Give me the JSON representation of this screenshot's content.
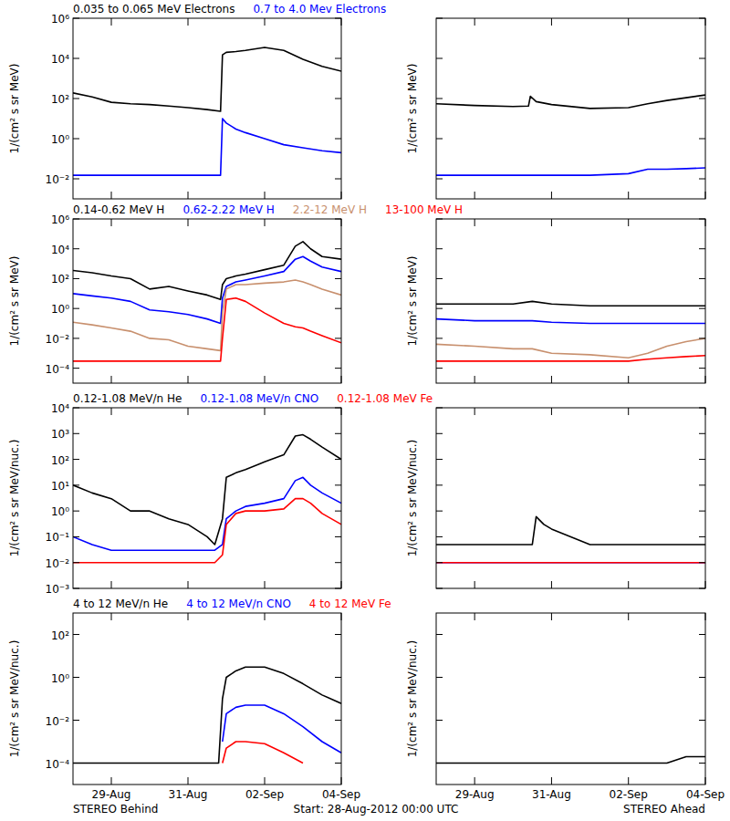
{
  "chart_data": [
    {
      "type": "line",
      "log": "y",
      "tick_labels": "y",
      "x": [
        0,
        0.5,
        1,
        1.5,
        2,
        2.5,
        3,
        3.5,
        3.85,
        3.9,
        4.0,
        4.25,
        4.5,
        5,
        5.5,
        6,
        6.5,
        7
      ],
      "xlim": [
        0,
        7
      ],
      "xticks": [
        {
          "value": 1,
          "label": "29-Aug"
        },
        {
          "value": 3,
          "label": "31-Aug"
        },
        {
          "value": 5,
          "label": "02-Sep"
        },
        {
          "value": 7,
          "label": "04-Sep"
        }
      ],
      "ylim": [
        0.001,
        1000000
      ],
      "yticks": [
        {
          "value": 1000000,
          "label": "10⁶"
        },
        {
          "value": 10000,
          "label": "10⁴"
        },
        {
          "value": 100,
          "label": "10²"
        },
        {
          "value": 1,
          "label": "10⁰"
        },
        {
          "value": 0.01,
          "label": "10⁻²"
        }
      ],
      "y_label": "1/(cm² s sr MeV)",
      "series": [
        {
          "name": "0.035 to 0.065 MeV Electrons",
          "color": "#000000",
          "values": [
            190,
            120,
            65,
            55,
            50,
            42,
            35,
            28,
            23,
            15000,
            20000,
            22000,
            25000,
            35000,
            25000,
            9000,
            4000,
            2300
          ]
        },
        {
          "name": "0.7 to 4.0 Mev Electrons",
          "color": "#0000ff",
          "values": [
            0.015,
            0.015,
            0.015,
            0.015,
            0.015,
            0.015,
            0.015,
            0.015,
            0.015,
            10,
            6,
            3,
            2,
            1,
            0.5,
            0.35,
            0.25,
            0.2
          ]
        }
      ]
    },
    {
      "type": "line",
      "log": "y",
      "tick_labels": false,
      "x": [
        0,
        1,
        2,
        2.4,
        2.45,
        2.6,
        3,
        4,
        5,
        5.5,
        6,
        6.5,
        7
      ],
      "xlim": [
        0,
        7
      ],
      "xticks": [
        {
          "value": 1,
          "label": "29-Aug"
        },
        {
          "value": 3,
          "label": "31-Aug"
        },
        {
          "value": 5,
          "label": "02-Sep"
        },
        {
          "value": 7,
          "label": "04-Sep"
        }
      ],
      "ylim": [
        0.001,
        1000000
      ],
      "yticks": [
        {
          "value": 1000000,
          "label": "10⁶"
        },
        {
          "value": 10000,
          "label": "10⁴"
        },
        {
          "value": 100,
          "label": "10²"
        },
        {
          "value": 1,
          "label": "10⁰"
        },
        {
          "value": 0.01,
          "label": "10⁻²"
        }
      ],
      "y_label": "1/(cm² s sr MeV)",
      "series": [
        {
          "color": "#000000",
          "values": [
            55,
            45,
            40,
            42,
            130,
            70,
            50,
            32,
            35,
            55,
            80,
            110,
            150
          ]
        },
        {
          "color": "#0000ff",
          "values": [
            0.015,
            0.015,
            0.015,
            0.015,
            0.015,
            0.015,
            0.015,
            0.015,
            0.018,
            0.03,
            0.03,
            0.032,
            0.035
          ]
        }
      ]
    },
    {
      "type": "line",
      "log": "y",
      "tick_labels": "y",
      "x": [
        0,
        0.5,
        1,
        1.5,
        2,
        2.5,
        3,
        3.5,
        3.85,
        3.9,
        4.0,
        4.25,
        4.5,
        5,
        5.5,
        5.8,
        6.0,
        6.2,
        6.5,
        7
      ],
      "xlim": [
        0,
        7
      ],
      "xticks": [
        {
          "value": 1,
          "label": "29-Aug"
        },
        {
          "value": 3,
          "label": "31-Aug"
        },
        {
          "value": 5,
          "label": "02-Sep"
        },
        {
          "value": 7,
          "label": "04-Sep"
        }
      ],
      "ylim": [
        1e-05,
        1000000
      ],
      "yticks": [
        {
          "value": 1000000,
          "label": "10⁶"
        },
        {
          "value": 10000,
          "label": "10⁴"
        },
        {
          "value": 100,
          "label": "10²"
        },
        {
          "value": 1,
          "label": "10⁰"
        },
        {
          "value": 0.01,
          "label": "10⁻²"
        },
        {
          "value": 0.0001,
          "label": "10⁻⁴"
        }
      ],
      "y_label": "1/(cm² s sr MeV)",
      "series": [
        {
          "name": "0.14-0.62 MeV H",
          "color": "#000000",
          "values": [
            350,
            250,
            150,
            100,
            20,
            30,
            15,
            8,
            4,
            40,
            100,
            150,
            200,
            400,
            800,
            15000,
            30000,
            10000,
            3000,
            2000
          ]
        },
        {
          "name": "0.62-2.22 MeV H",
          "color": "#0000ff",
          "values": [
            10,
            7,
            5,
            3,
            0.8,
            0.6,
            0.4,
            0.2,
            0.1,
            5,
            30,
            60,
            80,
            150,
            300,
            2000,
            3000,
            1500,
            600,
            300
          ]
        },
        {
          "name": "2.2-12 MeV H",
          "color": "#c8906e",
          "values": [
            0.12,
            0.08,
            0.05,
            0.03,
            0.01,
            0.008,
            0.003,
            0.002,
            0.0015,
            0.5,
            20,
            40,
            40,
            50,
            60,
            80,
            60,
            40,
            20,
            8
          ]
        },
        {
          "name": "13-100 MeV H",
          "color": "#ff0000",
          "values": [
            0.0003,
            0.0003,
            0.0003,
            0.0003,
            0.0003,
            0.0003,
            0.0003,
            0.0003,
            0.0003,
            0.01,
            4,
            5,
            3,
            0.5,
            0.1,
            0.06,
            0.05,
            0.03,
            0.015,
            0.005
          ]
        }
      ]
    },
    {
      "type": "line",
      "log": "y",
      "tick_labels": false,
      "x": [
        0,
        1,
        2,
        2.5,
        3,
        4,
        5,
        5.5,
        6,
        6.5,
        7
      ],
      "xlim": [
        0,
        7
      ],
      "xticks": [
        {
          "value": 1,
          "label": "29-Aug"
        },
        {
          "value": 3,
          "label": "31-Aug"
        },
        {
          "value": 5,
          "label": "02-Sep"
        },
        {
          "value": 7,
          "label": "04-Sep"
        }
      ],
      "ylim": [
        1e-05,
        1000000
      ],
      "yticks": [
        {
          "value": 1000000,
          "label": "10⁶"
        },
        {
          "value": 10000,
          "label": "10⁴"
        },
        {
          "value": 100,
          "label": "10²"
        },
        {
          "value": 1,
          "label": "10⁰"
        },
        {
          "value": 0.01,
          "label": "10⁻²"
        },
        {
          "value": 0.0001,
          "label": "10⁻⁴"
        }
      ],
      "y_label": "1/(cm² s sr MeV)",
      "series": [
        {
          "color": "#000000",
          "values": [
            2,
            2,
            2,
            3,
            2,
            1.5,
            1.5,
            1.5,
            1.5,
            1.5,
            1.5
          ]
        },
        {
          "color": "#0000ff",
          "values": [
            0.2,
            0.15,
            0.15,
            0.15,
            0.12,
            0.1,
            0.1,
            0.1,
            0.1,
            0.1,
            0.1
          ]
        },
        {
          "color": "#c8906e",
          "values": [
            0.004,
            0.003,
            0.002,
            0.002,
            0.001,
            0.0008,
            0.0005,
            0.001,
            0.003,
            0.006,
            0.01
          ]
        },
        {
          "color": "#ff0000",
          "values": [
            0.0003,
            0.0003,
            0.0003,
            0.0003,
            0.0003,
            0.0003,
            0.0003,
            0.0004,
            0.0005,
            0.0006,
            0.0007
          ]
        }
      ]
    },
    {
      "type": "line",
      "log": "y",
      "tick_labels": "y",
      "x": [
        0,
        0.5,
        1,
        1.5,
        2,
        2.5,
        3,
        3.5,
        3.7,
        3.9,
        4.0,
        4.25,
        4.5,
        5,
        5.5,
        5.8,
        6.0,
        6.2,
        6.5,
        7
      ],
      "xlim": [
        0,
        7
      ],
      "xticks": [
        {
          "value": 1,
          "label": "29-Aug"
        },
        {
          "value": 3,
          "label": "31-Aug"
        },
        {
          "value": 5,
          "label": "02-Sep"
        },
        {
          "value": 7,
          "label": "04-Sep"
        }
      ],
      "ylim": [
        0.001,
        10000
      ],
      "yticks": [
        {
          "value": 10000,
          "label": "10⁴"
        },
        {
          "value": 1000,
          "label": "10³"
        },
        {
          "value": 100,
          "label": "10²"
        },
        {
          "value": 10,
          "label": "10¹"
        },
        {
          "value": 1,
          "label": "10⁰"
        },
        {
          "value": 0.1,
          "label": "10⁻¹"
        },
        {
          "value": 0.01,
          "label": "10⁻²"
        },
        {
          "value": 0.001,
          "label": "10⁻³"
        }
      ],
      "y_label": "1/(cm² s sr MeV/nuc.)",
      "series": [
        {
          "name": "0.12-1.08 MeV/n He",
          "color": "#000000",
          "values": [
            10,
            5,
            3,
            1,
            1,
            0.5,
            0.3,
            0.1,
            0.05,
            0.5,
            20,
            30,
            40,
            80,
            150,
            800,
            900,
            600,
            300,
            100
          ]
        },
        {
          "name": "0.12-1.08 MeV/n CNO",
          "color": "#0000ff",
          "values": [
            0.1,
            0.05,
            0.03,
            0.03,
            0.03,
            0.03,
            0.03,
            0.03,
            0.03,
            0.05,
            0.5,
            1,
            1.5,
            2,
            3,
            15,
            20,
            10,
            5,
            2
          ]
        },
        {
          "name": "0.12-1.08 MeV Fe",
          "color": "#ff0000",
          "values": [
            0.01,
            0.01,
            0.01,
            0.01,
            0.01,
            0.01,
            0.01,
            0.01,
            0.01,
            0.02,
            0.3,
            0.8,
            1,
            1,
            1.2,
            3,
            3,
            2,
            0.8,
            0.3
          ]
        }
      ]
    },
    {
      "type": "line",
      "log": "y",
      "tick_labels": false,
      "x": [
        0,
        1,
        2,
        2.5,
        2.6,
        2.8,
        3,
        3.5,
        4,
        5,
        6,
        7
      ],
      "xlim": [
        0,
        7
      ],
      "xticks": [
        {
          "value": 1,
          "label": "29-Aug"
        },
        {
          "value": 3,
          "label": "31-Aug"
        },
        {
          "value": 5,
          "label": "02-Sep"
        },
        {
          "value": 7,
          "label": "04-Sep"
        }
      ],
      "ylim": [
        0.001,
        10000
      ],
      "yticks": [
        {
          "value": 10000,
          "label": "10⁴"
        },
        {
          "value": 1000,
          "label": "10³"
        },
        {
          "value": 100,
          "label": "10²"
        },
        {
          "value": 10,
          "label": "10¹"
        },
        {
          "value": 1,
          "label": "10⁰"
        },
        {
          "value": 0.1,
          "label": "10⁻¹"
        },
        {
          "value": 0.01,
          "label": "10⁻²"
        },
        {
          "value": 0.001,
          "label": "10⁻³"
        }
      ],
      "y_label": "1/(cm² s sr MeV/nuc.)",
      "series": [
        {
          "color": "#000000",
          "values": [
            0.05,
            0.05,
            0.05,
            0.05,
            0.6,
            0.3,
            0.2,
            0.1,
            0.05,
            0.05,
            0.05,
            0.05
          ]
        },
        {
          "color": "#0000ff",
          "values": [
            0.01,
            0.01,
            0.01,
            0.01,
            0.01,
            0.01,
            0.01,
            0.01,
            0.01,
            0.01,
            0.01,
            0.01
          ]
        },
        {
          "color": "#ff0000",
          "values": [
            0.01,
            0.01,
            0.01,
            0.01,
            0.01,
            0.01,
            0.01,
            0.01,
            0.01,
            0.01,
            0.01,
            0.01
          ]
        }
      ]
    },
    {
      "type": "line",
      "log": "y",
      "tick_labels": true,
      "x": [
        0,
        1,
        2,
        3,
        3.8,
        3.9,
        4.0,
        4.25,
        4.5,
        5,
        5.5,
        6,
        6.5,
        7
      ],
      "xlim": [
        0,
        7
      ],
      "xticks": [
        {
          "value": 1,
          "label": "29-Aug"
        },
        {
          "value": 3,
          "label": "31-Aug"
        },
        {
          "value": 5,
          "label": "02-Sep"
        },
        {
          "value": 7,
          "label": "04-Sep"
        }
      ],
      "ylim": [
        1e-05,
        1000
      ],
      "yticks": [
        {
          "value": 100,
          "label": "10²"
        },
        {
          "value": 1,
          "label": "10⁰"
        },
        {
          "value": 0.01,
          "label": "10⁻²"
        },
        {
          "value": 0.0001,
          "label": "10⁻⁴"
        }
      ],
      "y_label": "1/(cm² s sr MeV/nuc.)",
      "x_label": "STEREO Behind",
      "annotations": [
        "Start: 28-Aug-2012 00:00 UTC"
      ],
      "series": [
        {
          "name": "4 to 12 MeV/n He",
          "color": "#000000",
          "values": [
            0.0001,
            0.0001,
            0.0001,
            0.0001,
            0.0001,
            0.1,
            1,
            2,
            3,
            3,
            1.5,
            0.5,
            0.15,
            0.06
          ]
        },
        {
          "name": "4 to 12 MeV/n CNO",
          "color": "#0000ff",
          "values": [
            null,
            null,
            null,
            null,
            null,
            0.001,
            0.02,
            0.04,
            0.05,
            0.05,
            0.02,
            0.005,
            0.001,
            0.0003
          ]
        },
        {
          "name": "4 to 12 MeV Fe",
          "color": "#ff0000",
          "values": [
            null,
            null,
            null,
            null,
            null,
            0.0001,
            0.0005,
            0.001,
            0.001,
            0.0008,
            0.0003,
            0.0001,
            null,
            null
          ]
        }
      ]
    },
    {
      "type": "line",
      "log": "y",
      "tick_labels": "x",
      "x": [
        0,
        1,
        2,
        3,
        4,
        5,
        6,
        6.5,
        7
      ],
      "xlim": [
        0,
        7
      ],
      "xticks": [
        {
          "value": 1,
          "label": "29-Aug"
        },
        {
          "value": 3,
          "label": "31-Aug"
        },
        {
          "value": 5,
          "label": "02-Sep"
        },
        {
          "value": 7,
          "label": "04-Sep"
        }
      ],
      "ylim": [
        1e-05,
        1000
      ],
      "yticks": [
        {
          "value": 100,
          "label": "10²"
        },
        {
          "value": 1,
          "label": "10⁰"
        },
        {
          "value": 0.01,
          "label": "10⁻²"
        },
        {
          "value": 0.0001,
          "label": "10⁻⁴"
        }
      ],
      "y_label": "1/(cm² s sr MeV/nuc.)",
      "x_label": "STEREO Ahead",
      "series": [
        {
          "color": "#000000",
          "values": [
            0.0001,
            0.0001,
            0.0001,
            0.0001,
            0.0001,
            0.0001,
            0.0001,
            0.0002,
            0.0002
          ]
        }
      ]
    }
  ]
}
